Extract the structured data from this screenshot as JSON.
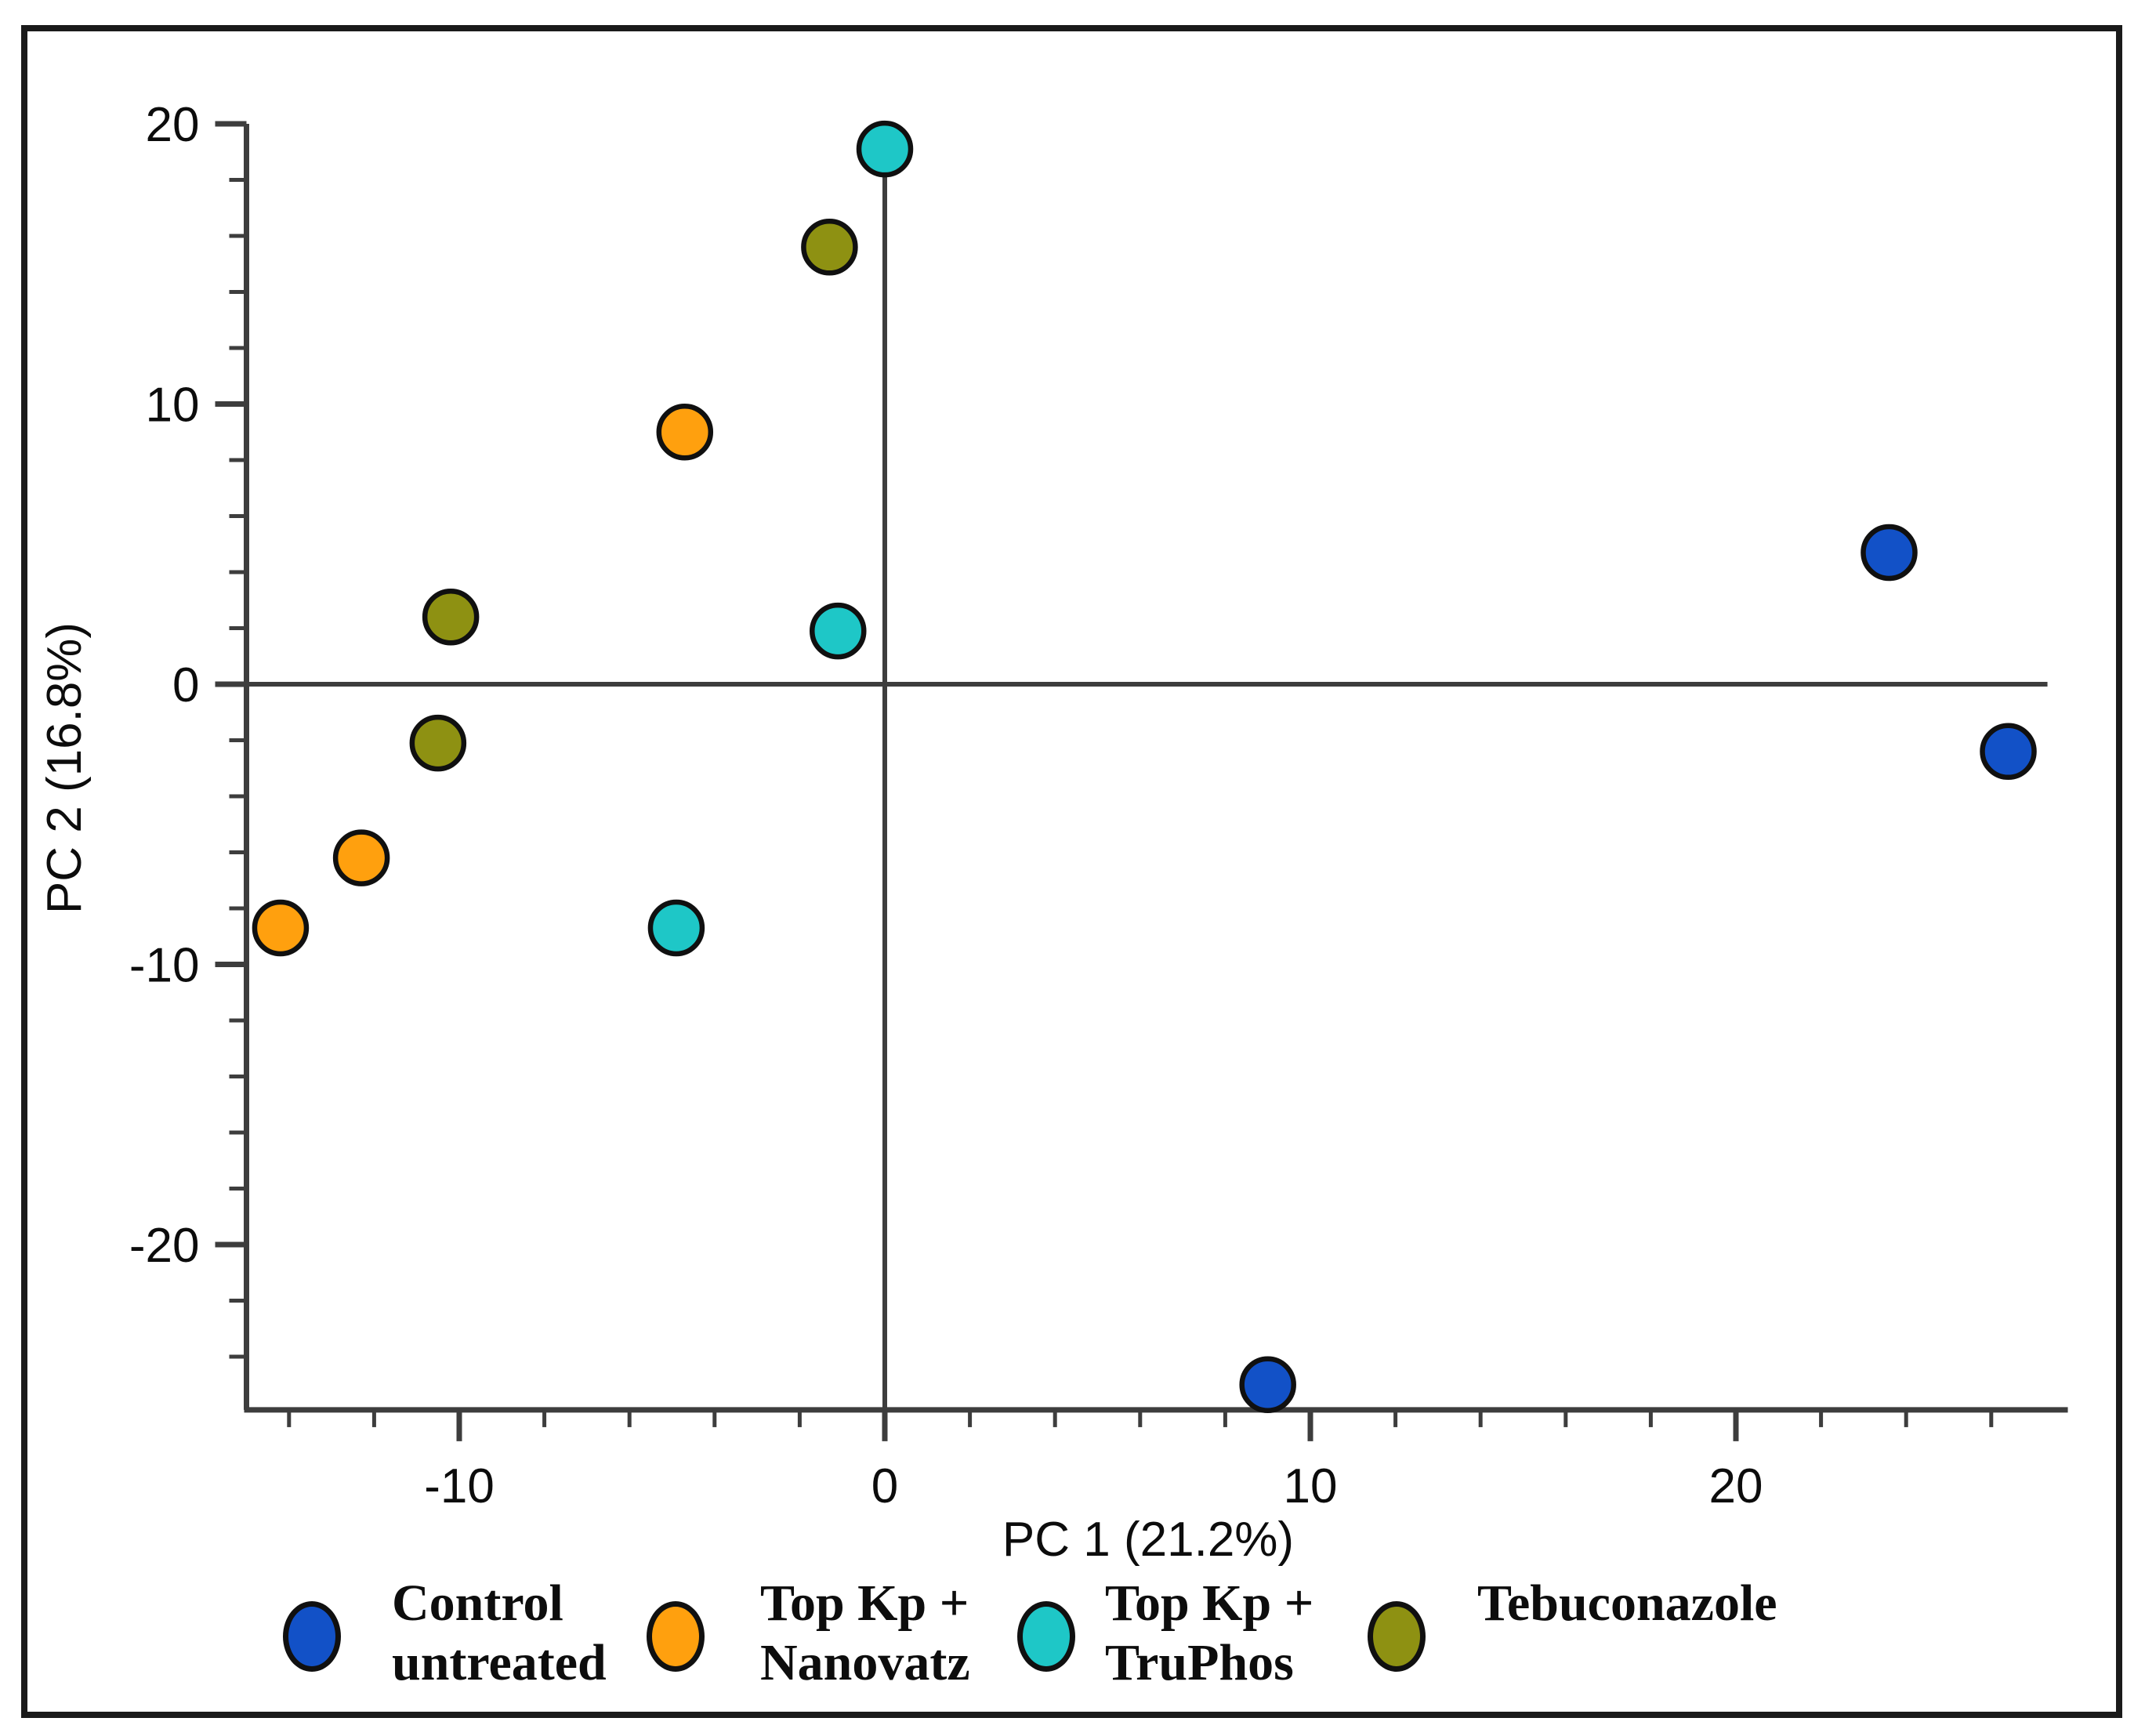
{
  "chart_data": {
    "type": "scatter",
    "title": "",
    "xlabel": "PC 1 (21.2%)",
    "ylabel": "PC 2 (16.8%)",
    "xlim": [
      -15,
      27.8
    ],
    "ylim": [
      -25.9,
      20.0
    ],
    "grid": false,
    "legend_position": "bottom",
    "x_major_ticks": [
      -10,
      0,
      10,
      20
    ],
    "y_major_ticks": [
      20,
      10,
      0,
      -10,
      -20
    ],
    "x_major_tick_labels": [
      "-10",
      "0",
      "10",
      "20"
    ],
    "y_major_tick_labels": [
      "20",
      "10",
      "0",
      "-10",
      "-20"
    ],
    "minor_tick_step": 2,
    "zero_lines": true,
    "axis_color": "#3d3d3d",
    "marker_outline_color": "#101010",
    "series": [
      {
        "name": "Control untreated",
        "color": "#1251C7",
        "points": [
          [
            23.6,
            4.7
          ],
          [
            26.4,
            -2.4
          ],
          [
            9.0,
            -25.0
          ]
        ]
      },
      {
        "name": "Top Kp + Nanovatz",
        "color": "#FFA00E",
        "points": [
          [
            -4.7,
            9.0
          ],
          [
            -12.3,
            -6.2
          ],
          [
            -14.2,
            -8.7
          ]
        ]
      },
      {
        "name": "Top Kp + TruPhos",
        "color": "#1EC7C7",
        "points": [
          [
            0.0,
            19.1
          ],
          [
            -1.1,
            1.9
          ],
          [
            -4.9,
            -8.7
          ]
        ]
      },
      {
        "name": "Tebuconazole",
        "color": "#8E9112",
        "points": [
          [
            -1.3,
            15.6
          ],
          [
            -10.2,
            2.4
          ],
          [
            -10.5,
            -2.1
          ]
        ]
      }
    ]
  },
  "axis": {
    "x_title": "PC 1 (21.2%)",
    "y_title": "PC 2 (16.8%)"
  },
  "legend": {
    "entries": [
      {
        "lines": [
          "Control",
          "untreated"
        ],
        "series_index": 0
      },
      {
        "lines": [
          "Top Kp +",
          "Nanovatz"
        ],
        "series_index": 1
      },
      {
        "lines": [
          "Top Kp +",
          "TruPhos"
        ],
        "series_index": 2
      },
      {
        "lines": [
          "Tebuconazole",
          ""
        ],
        "series_index": 3
      }
    ]
  }
}
